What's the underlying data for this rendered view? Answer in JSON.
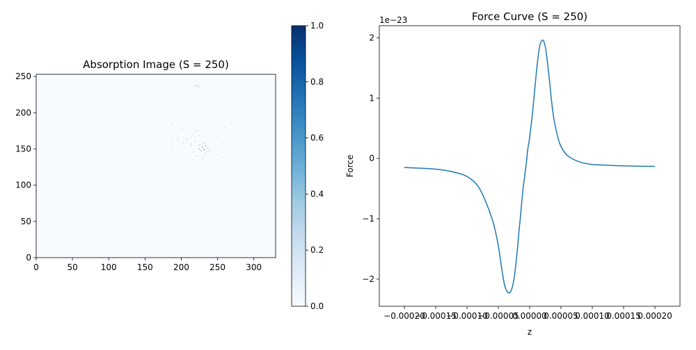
{
  "chart_data": [
    {
      "type": "heatmap",
      "title": "Absorption Image (S = 250)",
      "xlabel": "",
      "ylabel": "",
      "xlim": [
        0,
        330
      ],
      "ylim": [
        0,
        253
      ],
      "xticks": [
        0,
        50,
        100,
        150,
        200,
        250,
        300
      ],
      "yticks": [
        0,
        50,
        100,
        150,
        200,
        250
      ],
      "colormap": "Blues",
      "background_value": 0.0,
      "points": [
        {
          "x": 219,
          "y": 236,
          "v": 0.5
        },
        {
          "x": 222,
          "y": 237,
          "v": 0.7
        },
        {
          "x": 225,
          "y": 235,
          "v": 0.4
        },
        {
          "x": 210,
          "y": 217,
          "v": 0.3
        },
        {
          "x": 305,
          "y": 219,
          "v": 0.3
        },
        {
          "x": 255,
          "y": 190,
          "v": 0.4
        },
        {
          "x": 187,
          "y": 183,
          "v": 0.4
        },
        {
          "x": 208,
          "y": 181,
          "v": 0.3
        },
        {
          "x": 259,
          "y": 179,
          "v": 0.4
        },
        {
          "x": 244,
          "y": 178,
          "v": 0.3
        },
        {
          "x": 201,
          "y": 177,
          "v": 0.4
        },
        {
          "x": 221,
          "y": 175,
          "v": 0.5
        },
        {
          "x": 178,
          "y": 174,
          "v": 0.3
        },
        {
          "x": 189,
          "y": 173,
          "v": 0.3
        },
        {
          "x": 214,
          "y": 170,
          "v": 0.4
        },
        {
          "x": 159,
          "y": 170,
          "v": 0.3
        },
        {
          "x": 225,
          "y": 168,
          "v": 0.4
        },
        {
          "x": 250,
          "y": 165,
          "v": 0.3
        },
        {
          "x": 207,
          "y": 163,
          "v": 0.5
        },
        {
          "x": 195,
          "y": 162,
          "v": 0.4
        },
        {
          "x": 187,
          "y": 160,
          "v": 0.3
        },
        {
          "x": 218,
          "y": 160,
          "v": 0.5
        },
        {
          "x": 202,
          "y": 158,
          "v": 0.4
        },
        {
          "x": 231,
          "y": 158,
          "v": 0.6
        },
        {
          "x": 255,
          "y": 159,
          "v": 0.3
        },
        {
          "x": 186,
          "y": 156,
          "v": 0.4
        },
        {
          "x": 213,
          "y": 156,
          "v": 0.5
        },
        {
          "x": 225,
          "y": 155,
          "v": 0.6
        },
        {
          "x": 233,
          "y": 154,
          "v": 0.7
        },
        {
          "x": 229,
          "y": 152,
          "v": 0.8
        },
        {
          "x": 236,
          "y": 151,
          "v": 0.6
        },
        {
          "x": 224,
          "y": 150,
          "v": 0.7
        },
        {
          "x": 231,
          "y": 149,
          "v": 0.9
        },
        {
          "x": 227,
          "y": 147,
          "v": 0.7
        },
        {
          "x": 238,
          "y": 148,
          "v": 0.5
        },
        {
          "x": 141,
          "y": 156,
          "v": 0.3
        },
        {
          "x": 155,
          "y": 151,
          "v": 0.3
        },
        {
          "x": 145,
          "y": 148,
          "v": 0.3
        },
        {
          "x": 134,
          "y": 146,
          "v": 0.3
        },
        {
          "x": 180,
          "y": 148,
          "v": 0.3
        },
        {
          "x": 199,
          "y": 152,
          "v": 0.3
        },
        {
          "x": 216,
          "y": 145,
          "v": 0.4
        },
        {
          "x": 232,
          "y": 143,
          "v": 0.4
        },
        {
          "x": 207,
          "y": 142,
          "v": 0.3
        },
        {
          "x": 248,
          "y": 141,
          "v": 0.3
        },
        {
          "x": 193,
          "y": 141,
          "v": 0.3
        },
        {
          "x": 221,
          "y": 140,
          "v": 0.4
        },
        {
          "x": 256,
          "y": 138,
          "v": 0.3
        },
        {
          "x": 212,
          "y": 137,
          "v": 0.3
        },
        {
          "x": 228,
          "y": 136,
          "v": 0.4
        },
        {
          "x": 183,
          "y": 135,
          "v": 0.3
        },
        {
          "x": 241,
          "y": 132,
          "v": 0.3
        },
        {
          "x": 218,
          "y": 129,
          "v": 0.3
        },
        {
          "x": 189,
          "y": 125,
          "v": 0.3
        },
        {
          "x": 236,
          "y": 123,
          "v": 0.3
        },
        {
          "x": 229,
          "y": 119,
          "v": 0.3
        },
        {
          "x": 215,
          "y": 117,
          "v": 0.3
        },
        {
          "x": 195,
          "y": 101,
          "v": 0.3
        },
        {
          "x": 208,
          "y": 87,
          "v": 0.3
        },
        {
          "x": 226,
          "y": 55,
          "v": 0.3
        }
      ]
    },
    {
      "type": "colorbar",
      "range": [
        0.0,
        1.0
      ],
      "ticks": [
        0.0,
        0.2,
        0.4,
        0.6,
        0.8,
        1.0
      ],
      "tick_labels": [
        "0.0",
        "0.2",
        "0.4",
        "0.6",
        "0.8",
        "1.0"
      ],
      "colormap": "Blues"
    },
    {
      "type": "line",
      "title": "Force Curve (S = 250)",
      "xlabel": "z",
      "ylabel": "Force",
      "offset_label": "1e−23",
      "xlim": [
        -0.00024,
        0.00024
      ],
      "ylim": [
        -2.45,
        2.2
      ],
      "xticks": [
        -0.0002,
        -0.00015,
        -0.0001,
        -5e-05,
        0.0,
        5e-05,
        0.0001,
        0.00015,
        0.0002
      ],
      "xtick_labels": [
        "−0.00020",
        "−0.00015",
        "−0.00010",
        "−0.00005",
        "0.00000",
        "0.00005",
        "0.00010",
        "0.00015",
        "0.00020"
      ],
      "yticks": [
        -2,
        -1,
        0,
        1,
        2
      ],
      "ytick_labels": [
        "−2",
        "−1",
        "0",
        "1",
        "2"
      ],
      "color": "#1f77b4",
      "series": [
        {
          "x": [
            -0.0002,
            -0.00018,
            -0.00016,
            -0.00014,
            -0.00012,
            -0.0001,
            -8e-05,
            -6e-05,
            -5e-05,
            -4.5e-05,
            -4e-05,
            -3.5e-05,
            -3e-05,
            -2.5e-05,
            -2e-05,
            -1.7e-05,
            -1.5e-05,
            -1.2e-05,
            -1e-05,
            -8e-06,
            -5e-06,
            -3e-06,
            0.0,
            5e-06,
            1e-05,
            1.5e-05,
            2e-05,
            2.5e-05,
            3e-05,
            3.3e-05,
            3.5e-05,
            3.8e-05,
            4e-05,
            4.5e-05,
            5e-05,
            6e-05,
            8e-05,
            0.0001,
            0.00012,
            0.00014,
            0.00016,
            0.00018,
            0.0002
          ],
          "y": [
            -0.15,
            -0.16,
            -0.17,
            -0.19,
            -0.23,
            -0.3,
            -0.5,
            -1.0,
            -1.45,
            -1.8,
            -2.1,
            -2.22,
            -2.2,
            -2.0,
            -1.55,
            -1.2,
            -1.0,
            -0.65,
            -0.45,
            -0.3,
            -0.05,
            0.15,
            0.35,
            0.8,
            1.35,
            1.8,
            1.96,
            1.85,
            1.45,
            1.15,
            0.95,
            0.7,
            0.58,
            0.35,
            0.2,
            0.05,
            -0.06,
            -0.1,
            -0.11,
            -0.12,
            -0.125,
            -0.13,
            -0.13
          ]
        }
      ]
    }
  ]
}
